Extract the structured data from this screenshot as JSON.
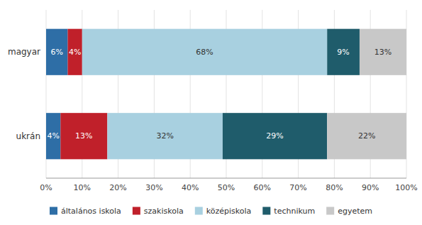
{
  "chart_data": {
    "type": "bar",
    "orientation": "horizontal",
    "stacked": true,
    "categories": [
      "magyar",
      "ukrán"
    ],
    "series": [
      {
        "name": "általános iskola",
        "color": "#2E6EA6",
        "values": [
          6,
          4
        ],
        "value_labels": [
          "6%",
          "4%"
        ]
      },
      {
        "name": "szakiskola",
        "color": "#C0202A",
        "values": [
          4,
          13
        ],
        "value_labels": [
          "4%",
          "13%"
        ]
      },
      {
        "name": "középiskola",
        "color": "#A8D0E0",
        "values": [
          68,
          32
        ],
        "value_labels": [
          "68%",
          "32%"
        ]
      },
      {
        "name": "technikum",
        "color": "#1F5C6B",
        "values": [
          9,
          29
        ],
        "value_labels": [
          "9%",
          "29%"
        ]
      },
      {
        "name": "egyetem",
        "color": "#C8C8C8",
        "values": [
          13,
          22
        ],
        "value_labels": [
          "13%",
          "22%"
        ]
      }
    ],
    "xlim": [
      0,
      100
    ],
    "xticks": [
      {
        "value": 0,
        "label": "0%"
      },
      {
        "value": 10,
        "label": "10%"
      },
      {
        "value": 20,
        "label": "20%"
      },
      {
        "value": 30,
        "label": "30%"
      },
      {
        "value": 40,
        "label": "40%"
      },
      {
        "value": 50,
        "label": "50%"
      },
      {
        "value": 60,
        "label": "60%"
      },
      {
        "value": 70,
        "label": "70%"
      },
      {
        "value": 80,
        "label": "80%"
      },
      {
        "value": 90,
        "label": "90%"
      },
      {
        "value": 100,
        "label": "100%"
      }
    ],
    "grid": true,
    "data_labels": true,
    "legend": "bottom"
  }
}
